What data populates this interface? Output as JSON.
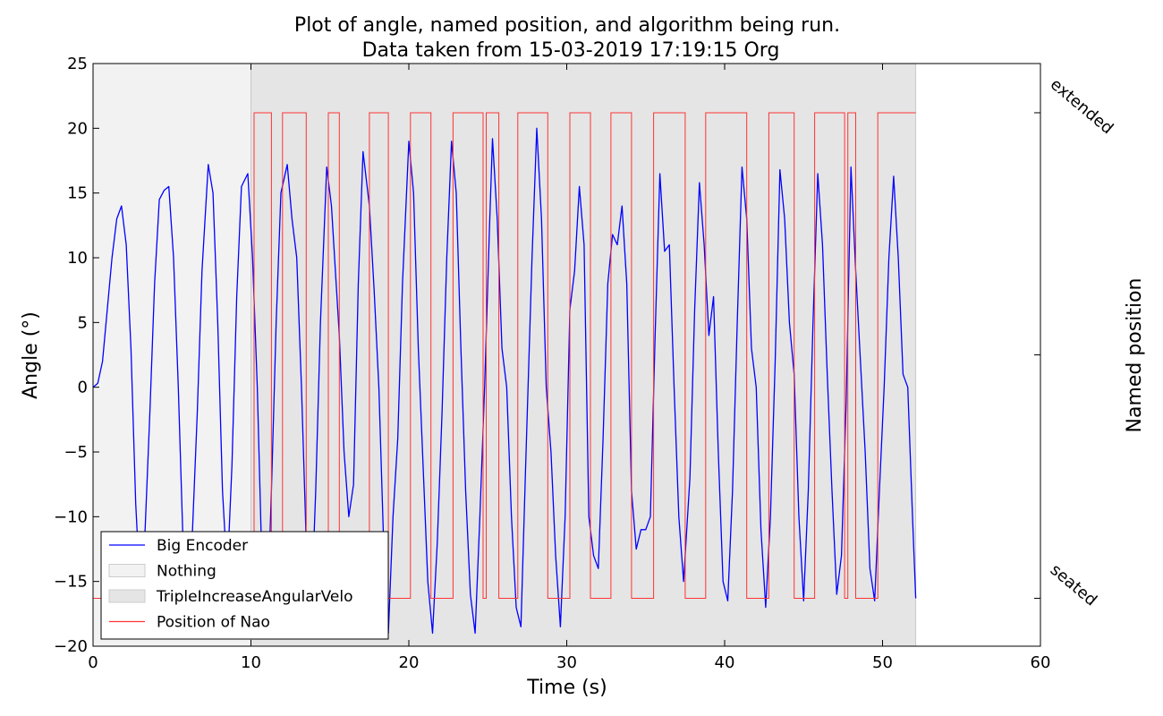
{
  "chart_data": {
    "type": "line",
    "title_line1": "Plot of angle, named position, and algorithm being run.",
    "title_line2": "Data taken from 15-03-2019 17:19:15 Org",
    "xlabel": "Time (s)",
    "ylabel": "Angle (°)",
    "ylabel_right": "Named position",
    "xlim": [
      0,
      60
    ],
    "ylim": [
      -20,
      25
    ],
    "xticks": [
      0,
      10,
      20,
      30,
      40,
      50,
      60
    ],
    "yticks": [
      -20,
      -15,
      -10,
      -5,
      0,
      5,
      10,
      15,
      20,
      25
    ],
    "right_ticks": [
      {
        "label": "extended",
        "y": 21.2
      },
      {
        "label": "",
        "y": 2.5
      },
      {
        "label": "seated",
        "y": -16.3
      }
    ],
    "regions": [
      {
        "name": "Nothing",
        "start": 0,
        "end": 10.0,
        "color": "#f2f2f2"
      },
      {
        "name": "TripleIncreaseAngularVelo",
        "start": 10.0,
        "end": 52.1,
        "color": "#e5e5e5"
      }
    ],
    "series": [
      {
        "name": "Big Encoder",
        "color": "#0000ff",
        "x": [
          0,
          0.3,
          0.6,
          0.9,
          1.2,
          1.5,
          1.8,
          2.1,
          2.4,
          2.7,
          3.0,
          3.3,
          3.6,
          3.9,
          4.2,
          4.5,
          4.8,
          5.1,
          5.4,
          5.7,
          6.0,
          6.3,
          6.6,
          6.9,
          7.3,
          7.6,
          7.9,
          8.2,
          8.5,
          8.8,
          9.1,
          9.4,
          9.8,
          10.1,
          10.4,
          10.7,
          11.0,
          11.3,
          11.6,
          11.9,
          12.3,
          12.6,
          12.9,
          13.2,
          13.5,
          13.8,
          14.1,
          14.4,
          14.8,
          15.1,
          15.3,
          15.6,
          15.9,
          16.2,
          16.5,
          16.8,
          17.1,
          17.5,
          17.8,
          18.1,
          18.4,
          18.7,
          19.0,
          19.3,
          19.6,
          20.0,
          20.3,
          20.6,
          20.9,
          21.2,
          21.5,
          21.8,
          22.1,
          22.4,
          22.7,
          23.0,
          23.3,
          23.6,
          23.9,
          24.2,
          24.5,
          24.8,
          25.1,
          25.3,
          25.6,
          25.9,
          26.2,
          26.5,
          26.8,
          27.1,
          27.4,
          27.8,
          28.1,
          28.4,
          28.7,
          29.0,
          29.3,
          29.6,
          29.9,
          30.2,
          30.5,
          30.8,
          31.1,
          31.4,
          31.7,
          32.0,
          32.3,
          32.6,
          32.9,
          33.2,
          33.5,
          33.8,
          34.1,
          34.4,
          34.7,
          35.0,
          35.3,
          35.6,
          35.9,
          36.2,
          36.5,
          36.8,
          37.1,
          37.4,
          37.8,
          38.1,
          38.4,
          38.7,
          39.0,
          39.3,
          39.6,
          39.9,
          40.2,
          40.5,
          40.8,
          41.1,
          41.4,
          41.7,
          42.0,
          42.3,
          42.6,
          42.9,
          43.2,
          43.5,
          43.8,
          44.1,
          44.4,
          44.7,
          45.0,
          45.3,
          45.6,
          45.9,
          46.2,
          46.5,
          46.8,
          47.1,
          47.4,
          47.7,
          48.0,
          48.3,
          48.6,
          48.9,
          49.2,
          49.5,
          49.8,
          50.1,
          50.4,
          50.7,
          51.0,
          51.3,
          51.6,
          51.9,
          52.1
        ],
        "values": [
          0,
          0.3,
          2,
          6,
          10,
          13,
          14,
          11,
          3,
          -9,
          -16,
          -11,
          -2,
          8,
          14.5,
          15.2,
          15.5,
          10,
          0,
          -12,
          -16.5,
          -11,
          -2,
          9,
          17.2,
          15,
          5,
          -8,
          -14.5,
          -6,
          7,
          15.5,
          16.5,
          10,
          0,
          -14,
          -19,
          -8,
          5,
          15,
          17.2,
          13,
          10,
          0,
          -12,
          -18,
          -8,
          5,
          17,
          14,
          10,
          4,
          -5,
          -10,
          -7.5,
          8,
          18.2,
          14,
          7.5,
          0,
          -12,
          -19,
          -10,
          -4,
          8,
          19,
          15,
          3,
          -6,
          -15,
          -19,
          -12,
          -2,
          10,
          19,
          15,
          3,
          -8,
          -16,
          -19,
          -10,
          0,
          12,
          19.2,
          13,
          3,
          0,
          -10,
          -17,
          -18.5,
          -6,
          10,
          20,
          13,
          0,
          -5,
          -13,
          -18.5,
          -10,
          6,
          9,
          15.5,
          11,
          -10,
          -13,
          -14,
          -4,
          8,
          11.8,
          11,
          14,
          8,
          -8,
          -12.5,
          -11,
          -11,
          -10,
          4,
          16.5,
          10.5,
          11,
          0,
          -10,
          -15,
          -7,
          6,
          15.8,
          11,
          4,
          7,
          -5,
          -15,
          -16.5,
          -8,
          5,
          17,
          13,
          3,
          0,
          -11,
          -17,
          -10,
          2,
          16.8,
          13,
          5,
          1,
          -10,
          -16.5,
          -8,
          5,
          16.5,
          11,
          1,
          -8,
          -16,
          -13,
          -1,
          17,
          9,
          2,
          -5,
          -14,
          -16.5,
          -8,
          0,
          10,
          16.3,
          10,
          1,
          0,
          -10,
          -16.3
        ]
      },
      {
        "name": "Position of Nao",
        "color": "#ff3333",
        "high": 21.2,
        "low": -16.3,
        "transitions": [
          0,
          10.2,
          11.3,
          12.0,
          13.5,
          14.9,
          15.6,
          17.5,
          18.7,
          20.1,
          21.4,
          22.8,
          24.7,
          24.9,
          25.7,
          26.9,
          28.8,
          30.2,
          31.5,
          32.8,
          34.1,
          35.5,
          37.5,
          38.8,
          41.4,
          42.8,
          44.4,
          45.7,
          47.6,
          47.8,
          48.3,
          49.7,
          52.1
        ]
      }
    ],
    "legend": {
      "placement": "lower-left",
      "entries": [
        {
          "label": "Big Encoder",
          "kind": "line",
          "color": "#0000ff"
        },
        {
          "label": "Nothing",
          "kind": "patch",
          "color": "#f2f2f2"
        },
        {
          "label": "TripleIncreaseAngularVelo",
          "kind": "patch",
          "color": "#e5e5e5"
        },
        {
          "label": "Position of Nao",
          "kind": "line",
          "color": "#ff3333"
        }
      ]
    }
  }
}
